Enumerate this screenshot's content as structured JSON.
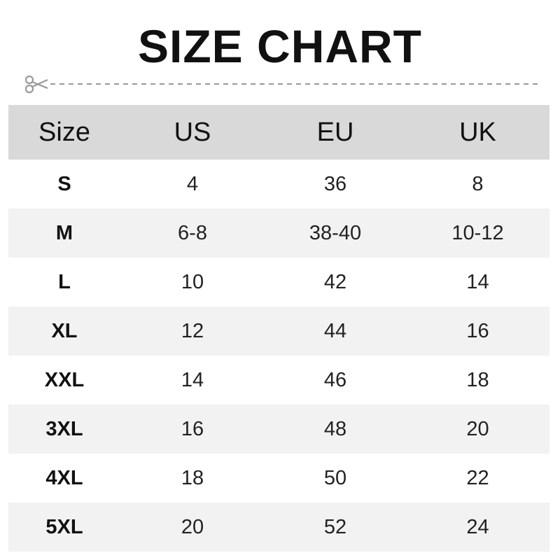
{
  "title": "SIZE CHART",
  "icons": {
    "cut": "scissors-icon"
  },
  "colors": {
    "header_bg": "#d9d9d9",
    "alt_row_bg": "#f2f2f2",
    "cutline": "#999999"
  },
  "table": {
    "headers": [
      "Size",
      "US",
      "EU",
      "UK"
    ],
    "rows": [
      [
        "S",
        "4",
        "36",
        "8"
      ],
      [
        "M",
        "6-8",
        "38-40",
        "10-12"
      ],
      [
        "L",
        "10",
        "42",
        "14"
      ],
      [
        "XL",
        "12",
        "44",
        "16"
      ],
      [
        "XXL",
        "14",
        "46",
        "18"
      ],
      [
        "3XL",
        "16",
        "48",
        "20"
      ],
      [
        "4XL",
        "18",
        "50",
        "22"
      ],
      [
        "5XL",
        "20",
        "52",
        "24"
      ]
    ]
  }
}
